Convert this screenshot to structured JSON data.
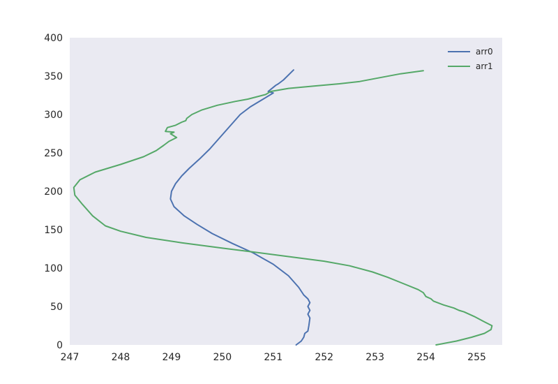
{
  "chart_data": {
    "type": "line",
    "title": "",
    "xlabel": "",
    "ylabel": "",
    "xlim": [
      247,
      255.5
    ],
    "ylim": [
      0,
      400
    ],
    "x_ticks": [
      247,
      248,
      249,
      250,
      251,
      252,
      253,
      254,
      255
    ],
    "y_ticks": [
      0,
      50,
      100,
      150,
      200,
      250,
      300,
      350,
      400
    ],
    "grid": false,
    "background_color": "#EAEAF2",
    "legend_position": "upper-right",
    "series": [
      {
        "name": "arr0",
        "color": "#4C72B0",
        "points": [
          [
            251.45,
            0
          ],
          [
            251.55,
            5
          ],
          [
            251.6,
            10
          ],
          [
            251.62,
            15
          ],
          [
            251.68,
            18
          ],
          [
            251.7,
            25
          ],
          [
            251.72,
            35
          ],
          [
            251.68,
            40
          ],
          [
            251.72,
            45
          ],
          [
            251.68,
            50
          ],
          [
            251.72,
            55
          ],
          [
            251.68,
            60
          ],
          [
            251.6,
            65
          ],
          [
            251.5,
            75
          ],
          [
            251.3,
            90
          ],
          [
            251.0,
            105
          ],
          [
            250.6,
            120
          ],
          [
            250.2,
            132
          ],
          [
            249.8,
            145
          ],
          [
            249.5,
            157
          ],
          [
            249.25,
            168
          ],
          [
            249.05,
            180
          ],
          [
            248.98,
            190
          ],
          [
            249.0,
            200
          ],
          [
            249.08,
            210
          ],
          [
            249.2,
            220
          ],
          [
            249.35,
            230
          ],
          [
            249.55,
            242
          ],
          [
            249.75,
            255
          ],
          [
            249.95,
            270
          ],
          [
            250.15,
            285
          ],
          [
            250.35,
            300
          ],
          [
            250.55,
            310
          ],
          [
            250.8,
            320
          ],
          [
            251.0,
            328
          ],
          [
            250.9,
            330
          ],
          [
            251.05,
            338
          ],
          [
            251.1,
            340
          ],
          [
            251.2,
            345
          ],
          [
            251.4,
            358
          ]
        ]
      },
      {
        "name": "arr1",
        "color": "#55A868",
        "points": [
          [
            254.2,
            0
          ],
          [
            254.6,
            5
          ],
          [
            254.9,
            10
          ],
          [
            255.15,
            15
          ],
          [
            255.28,
            20
          ],
          [
            255.3,
            25
          ],
          [
            255.15,
            30
          ],
          [
            254.95,
            37
          ],
          [
            254.75,
            43
          ],
          [
            254.65,
            45
          ],
          [
            254.55,
            48
          ],
          [
            254.35,
            52
          ],
          [
            254.15,
            57
          ],
          [
            254.1,
            60
          ],
          [
            254.0,
            63
          ],
          [
            253.95,
            68
          ],
          [
            253.85,
            72
          ],
          [
            253.55,
            80
          ],
          [
            253.25,
            88
          ],
          [
            252.95,
            95
          ],
          [
            252.5,
            103
          ],
          [
            252.0,
            109
          ],
          [
            251.3,
            115
          ],
          [
            250.6,
            121
          ],
          [
            250.0,
            126
          ],
          [
            249.2,
            133
          ],
          [
            248.5,
            140
          ],
          [
            248.0,
            148
          ],
          [
            247.7,
            155
          ],
          [
            247.45,
            168
          ],
          [
            247.25,
            183
          ],
          [
            247.1,
            195
          ],
          [
            247.08,
            205
          ],
          [
            247.2,
            215
          ],
          [
            247.5,
            225
          ],
          [
            248.0,
            235
          ],
          [
            248.45,
            245
          ],
          [
            248.7,
            253
          ],
          [
            248.85,
            260
          ],
          [
            248.95,
            265
          ],
          [
            249.1,
            270
          ],
          [
            248.98,
            275
          ],
          [
            249.05,
            277
          ],
          [
            248.88,
            278
          ],
          [
            248.92,
            283
          ],
          [
            249.08,
            286
          ],
          [
            249.2,
            290
          ],
          [
            249.28,
            292
          ],
          [
            249.3,
            295
          ],
          [
            249.4,
            300
          ],
          [
            249.6,
            306
          ],
          [
            249.9,
            312
          ],
          [
            250.25,
            317
          ],
          [
            250.5,
            320
          ],
          [
            250.85,
            326
          ],
          [
            250.95,
            330
          ],
          [
            251.3,
            334
          ],
          [
            251.8,
            337
          ],
          [
            252.3,
            340
          ],
          [
            252.7,
            343
          ],
          [
            253.1,
            348
          ],
          [
            253.5,
            353
          ],
          [
            253.95,
            357
          ]
        ]
      }
    ]
  }
}
